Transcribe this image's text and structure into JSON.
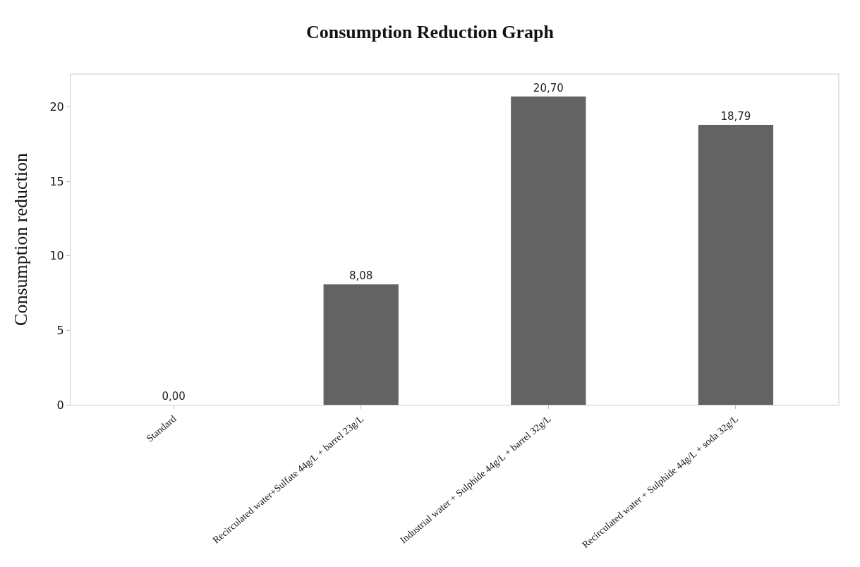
{
  "chart_data": {
    "type": "bar",
    "title": "Consumption Reduction Graph",
    "ylabel": "Consumption reduction",
    "categories": [
      "Standard",
      "Recirculated water+Sulfate 44g/L + barrel 23g/L",
      "Industrial water + Sulphide 44g/L + barrel 32g/L",
      "Recirculated water + Sulphide 44g/L + soda 32g/L"
    ],
    "values": [
      0,
      8.08,
      20.7,
      18.79
    ],
    "color": "#636363",
    "value_labels": [
      "0,00",
      "8,08",
      "20,70",
      "18,79"
    ],
    "ylim": [
      0,
      22.2
    ],
    "yticks": [
      0,
      5,
      10,
      15,
      20
    ],
    "grid": false,
    "legend": false
  }
}
